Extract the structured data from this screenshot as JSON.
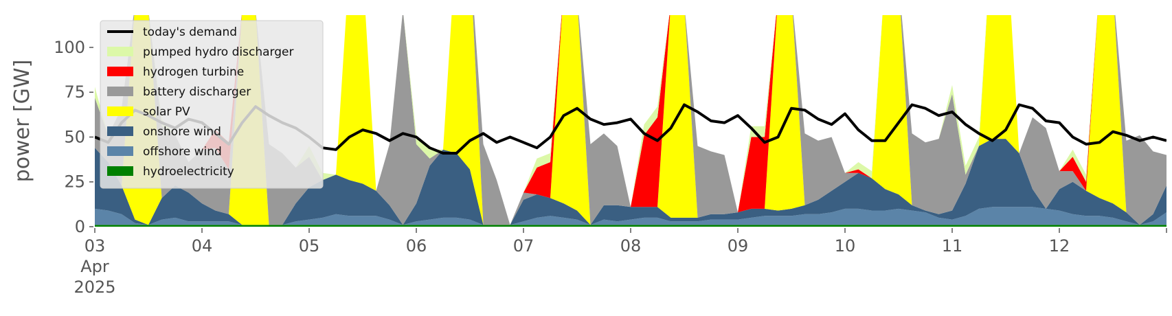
{
  "chart_data": {
    "type": "area",
    "ylabel": "power [GW]",
    "ylim": [
      0,
      118
    ],
    "xlim": [
      "2025-04-03T00:00",
      "2025-04-13T00:00"
    ],
    "y_ticks": [
      0,
      25,
      50,
      75,
      100
    ],
    "x_tick_labels": [
      "03",
      "04",
      "05",
      "06",
      "07",
      "08",
      "09",
      "10",
      "11",
      "12"
    ],
    "x_tick_sublabels": [
      "Apr",
      "2025"
    ],
    "grid": false,
    "legend_position": "top-left",
    "x": [
      "2025-04-03T00:00",
      "2025-04-03T03:00",
      "2025-04-03T06:00",
      "2025-04-03T09:00",
      "2025-04-03T12:00",
      "2025-04-03T15:00",
      "2025-04-03T18:00",
      "2025-04-03T21:00",
      "2025-04-04T00:00",
      "2025-04-04T03:00",
      "2025-04-04T06:00",
      "2025-04-04T09:00",
      "2025-04-04T12:00",
      "2025-04-04T15:00",
      "2025-04-04T18:00",
      "2025-04-04T21:00",
      "2025-04-05T00:00",
      "2025-04-05T03:00",
      "2025-04-05T06:00",
      "2025-04-05T09:00",
      "2025-04-05T12:00",
      "2025-04-05T15:00",
      "2025-04-05T18:00",
      "2025-04-05T21:00",
      "2025-04-06T00:00",
      "2025-04-06T03:00",
      "2025-04-06T06:00",
      "2025-04-06T09:00",
      "2025-04-06T12:00",
      "2025-04-06T15:00",
      "2025-04-06T18:00",
      "2025-04-06T21:00",
      "2025-04-07T00:00",
      "2025-04-07T03:00",
      "2025-04-07T06:00",
      "2025-04-07T09:00",
      "2025-04-07T12:00",
      "2025-04-07T15:00",
      "2025-04-07T18:00",
      "2025-04-07T21:00",
      "2025-04-08T00:00",
      "2025-04-08T03:00",
      "2025-04-08T06:00",
      "2025-04-08T09:00",
      "2025-04-08T12:00",
      "2025-04-08T15:00",
      "2025-04-08T18:00",
      "2025-04-08T21:00",
      "2025-04-09T00:00",
      "2025-04-09T03:00",
      "2025-04-09T06:00",
      "2025-04-09T09:00",
      "2025-04-09T12:00",
      "2025-04-09T15:00",
      "2025-04-09T18:00",
      "2025-04-09T21:00",
      "2025-04-10T00:00",
      "2025-04-10T03:00",
      "2025-04-10T06:00",
      "2025-04-10T09:00",
      "2025-04-10T12:00",
      "2025-04-10T15:00",
      "2025-04-10T18:00",
      "2025-04-10T21:00",
      "2025-04-11T00:00",
      "2025-04-11T03:00",
      "2025-04-11T06:00",
      "2025-04-11T09:00",
      "2025-04-11T12:00",
      "2025-04-11T15:00",
      "2025-04-11T18:00",
      "2025-04-11T21:00",
      "2025-04-12T00:00",
      "2025-04-12T03:00",
      "2025-04-12T06:00",
      "2025-04-12T09:00",
      "2025-04-12T12:00",
      "2025-04-12T15:00",
      "2025-04-12T18:00",
      "2025-04-12T21:00",
      "2025-04-13T00:00"
    ],
    "series": [
      {
        "name": "hydroelectricity",
        "color": "#008000",
        "values": [
          1,
          1,
          1,
          1,
          1,
          1,
          1,
          1,
          1,
          1,
          1,
          1,
          1,
          1,
          1,
          1,
          1,
          1,
          1,
          1,
          1,
          1,
          1,
          1,
          1,
          1,
          1,
          1,
          1,
          1,
          1,
          1,
          1,
          1,
          1,
          1,
          1,
          1,
          1,
          1,
          1,
          1,
          1,
          1,
          1,
          1,
          1,
          1,
          1,
          1,
          1,
          1,
          1,
          1,
          1,
          1,
          1,
          1,
          1,
          1,
          1,
          1,
          1,
          1,
          1,
          1,
          1,
          1,
          1,
          1,
          1,
          1,
          1,
          1,
          1,
          1,
          1,
          1,
          1,
          1,
          1
        ]
      },
      {
        "name": "offshore wind",
        "color": "#5b84a8",
        "values": [
          9,
          8,
          6,
          1,
          0,
          3,
          4,
          2,
          2,
          2,
          2,
          0,
          0,
          0,
          0,
          2,
          3,
          4,
          6,
          5,
          5,
          5,
          3,
          0,
          2,
          3,
          4,
          4,
          3,
          0,
          0,
          0,
          2,
          4,
          5,
          4,
          3,
          0,
          3,
          2,
          3,
          4,
          4,
          2,
          2,
          2,
          3,
          3,
          3,
          4,
          5,
          5,
          5,
          6,
          6,
          7,
          9,
          9,
          8,
          8,
          9,
          8,
          7,
          4,
          3,
          5,
          9,
          10,
          10,
          10,
          10,
          9,
          8,
          6,
          5,
          5,
          4,
          2,
          0,
          2,
          7
        ]
      },
      {
        "name": "onshore wind",
        "color": "#3a5f82",
        "values": [
          34,
          27,
          16,
          2,
          0,
          12,
          18,
          16,
          10,
          6,
          4,
          0,
          0,
          0,
          0,
          10,
          18,
          21,
          22,
          20,
          18,
          14,
          8,
          0,
          10,
          30,
          38,
          36,
          28,
          0,
          0,
          0,
          12,
          13,
          10,
          8,
          5,
          0,
          8,
          9,
          7,
          6,
          6,
          2,
          2,
          2,
          3,
          3,
          4,
          5,
          4,
          3,
          4,
          5,
          8,
          12,
          15,
          20,
          18,
          12,
          8,
          3,
          1,
          2,
          5,
          18,
          35,
          38,
          38,
          30,
          10,
          0,
          12,
          18,
          14,
          10,
          8,
          5,
          0,
          4,
          15
        ]
      },
      {
        "name": "solar PV",
        "color": "#ffff00",
        "values": [
          0,
          0,
          0,
          120,
          120,
          0,
          0,
          0,
          0,
          0,
          0,
          120,
          120,
          0,
          0,
          0,
          0,
          0,
          0,
          120,
          120,
          0,
          0,
          0,
          0,
          0,
          0,
          120,
          120,
          0,
          0,
          0,
          0,
          0,
          0,
          120,
          120,
          0,
          0,
          0,
          0,
          0,
          0,
          120,
          120,
          0,
          0,
          0,
          0,
          0,
          0,
          120,
          120,
          0,
          0,
          0,
          0,
          0,
          0,
          120,
          120,
          0,
          0,
          0,
          0,
          0,
          0,
          120,
          120,
          0,
          0,
          0,
          0,
          0,
          0,
          120,
          120,
          0,
          0,
          0,
          0
        ]
      },
      {
        "name": "battery discharger",
        "color": "#999999",
        "values": [
          28,
          15,
          43,
          0,
          0,
          40,
          28,
          17,
          30,
          35,
          25,
          0,
          0,
          45,
          40,
          20,
          17,
          0,
          0,
          0,
          0,
          0,
          34,
          120,
          33,
          4,
          0,
          0,
          0,
          45,
          25,
          0,
          4,
          0,
          0,
          0,
          0,
          45,
          40,
          33,
          0,
          0,
          0,
          0,
          0,
          40,
          35,
          33,
          0,
          0,
          0,
          0,
          0,
          40,
          33,
          30,
          5,
          0,
          0,
          0,
          0,
          40,
          38,
          42,
          65,
          5,
          0,
          0,
          0,
          0,
          40,
          45,
          10,
          6,
          0,
          0,
          0,
          40,
          50,
          35,
          17
        ]
      },
      {
        "name": "hydrogen turbine",
        "color": "#ff0000",
        "values": [
          0,
          0,
          0,
          0,
          0,
          0,
          0,
          0,
          0,
          10,
          15,
          0,
          0,
          0,
          0,
          0,
          0,
          0,
          0,
          0,
          0,
          0,
          0,
          0,
          0,
          0,
          0,
          0,
          0,
          0,
          0,
          0,
          0,
          15,
          20,
          0,
          0,
          0,
          0,
          0,
          0,
          40,
          50,
          0,
          0,
          0,
          0,
          0,
          0,
          40,
          40,
          0,
          0,
          0,
          0,
          0,
          0,
          2,
          0,
          0,
          0,
          0,
          0,
          0,
          0,
          0,
          0,
          0,
          0,
          0,
          0,
          0,
          0,
          8,
          5,
          0,
          0,
          0,
          0,
          0,
          0
        ]
      },
      {
        "name": "pumped hydro discharger",
        "color": "#dcf8a8",
        "values": [
          6,
          0,
          0,
          0,
          0,
          4,
          0,
          0,
          0,
          0,
          0,
          0,
          0,
          0,
          0,
          0,
          6,
          4,
          0,
          0,
          0,
          0,
          0,
          0,
          5,
          5,
          0,
          0,
          0,
          0,
          0,
          0,
          0,
          5,
          5,
          0,
          0,
          0,
          0,
          0,
          0,
          6,
          6,
          0,
          0,
          0,
          0,
          0,
          0,
          6,
          6,
          0,
          0,
          0,
          0,
          0,
          0,
          4,
          4,
          0,
          0,
          0,
          0,
          0,
          5,
          5,
          5,
          0,
          0,
          0,
          0,
          0,
          0,
          4,
          4,
          0,
          0,
          0,
          0,
          0,
          0
        ]
      }
    ],
    "demand": {
      "name": "today's demand",
      "color": "#000000",
      "values": [
        50,
        47,
        58,
        65,
        62,
        58,
        55,
        60,
        58,
        52,
        46,
        58,
        67,
        62,
        58,
        55,
        50,
        44,
        43,
        50,
        54,
        52,
        48,
        52,
        50,
        44,
        41,
        41,
        48,
        52,
        47,
        50,
        47,
        44,
        50,
        62,
        66,
        60,
        57,
        58,
        60,
        52,
        48,
        55,
        68,
        64,
        59,
        58,
        62,
        55,
        47,
        50,
        66,
        65,
        60,
        57,
        63,
        54,
        48,
        48,
        58,
        68,
        66,
        62,
        64,
        57,
        52,
        48,
        54,
        68,
        66,
        59,
        58,
        50,
        46,
        47,
        53,
        51,
        48,
        50,
        48
      ]
    }
  }
}
